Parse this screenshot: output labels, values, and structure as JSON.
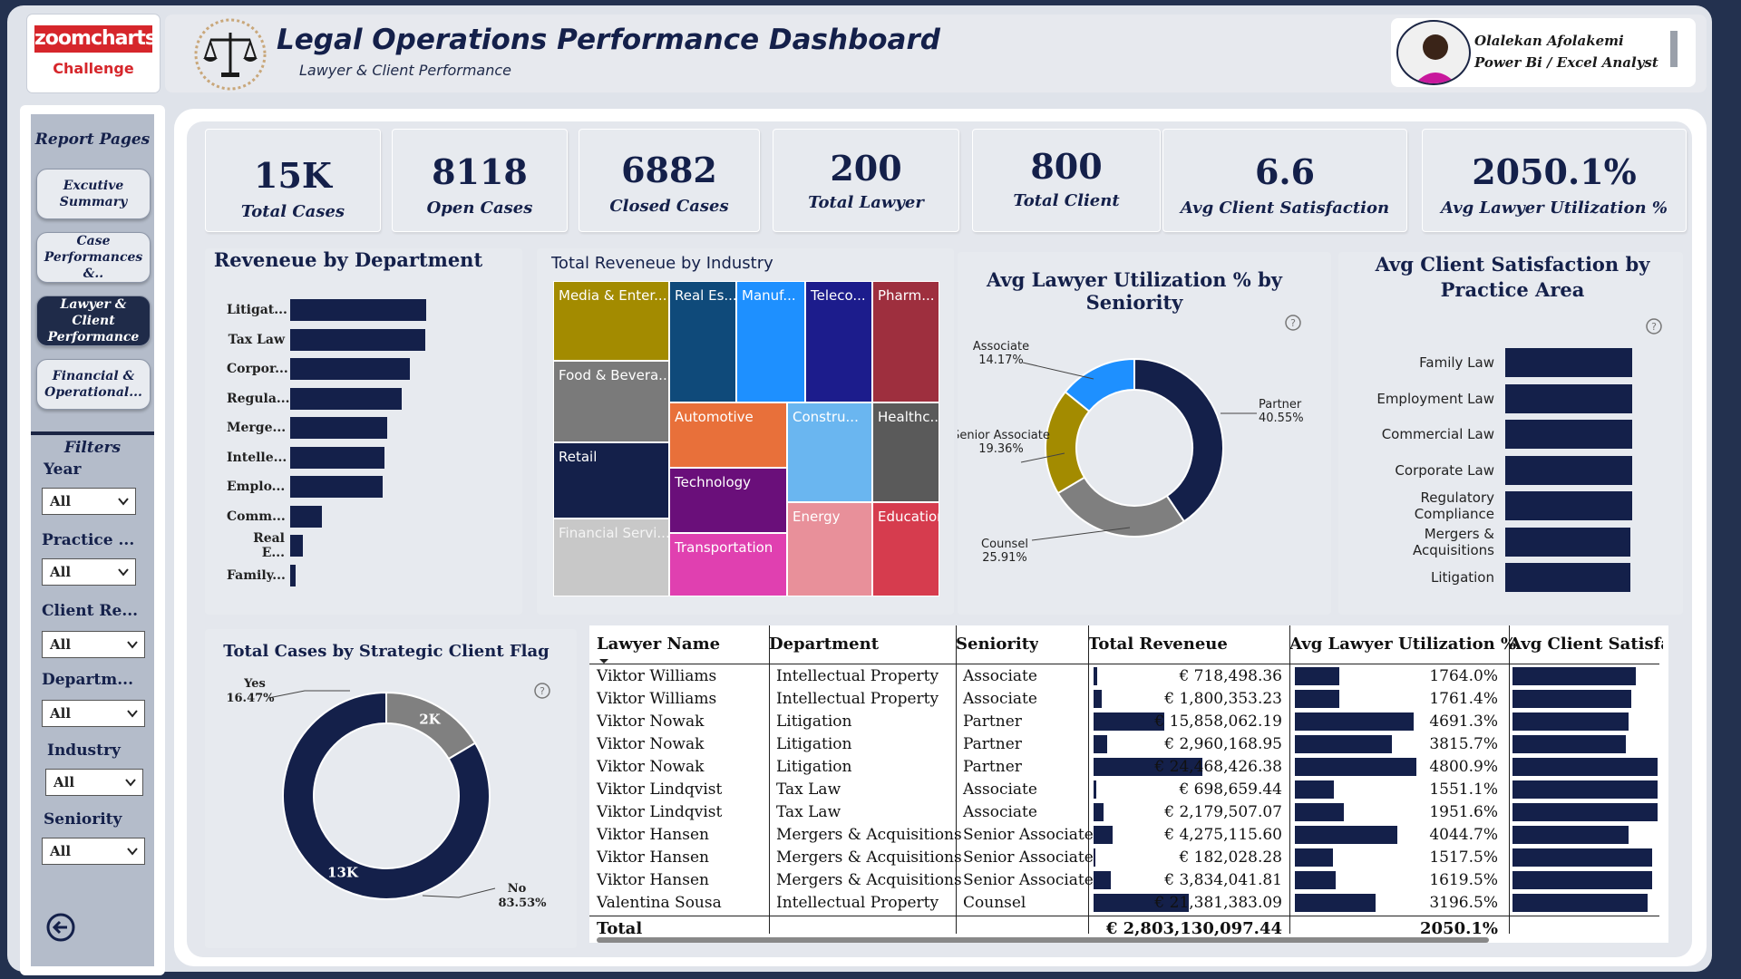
{
  "logo": {
    "brand": "zoomcharts",
    "sub": "Challenge"
  },
  "header": {
    "title": "Legal Operations Performance Dashboard",
    "subtitle": "Lawyer & Client Performance"
  },
  "author": {
    "name": "Olalekan Afolakemi",
    "role": "Power Bi / Excel Analyst"
  },
  "sidebar": {
    "title": "Report Pages",
    "pages": [
      {
        "label": "Excutive Summary",
        "active": false
      },
      {
        "label": "Case Performances &..",
        "active": false
      },
      {
        "label": "Lawyer & Client Performance",
        "active": true
      },
      {
        "label": "Financial & Operational...",
        "active": false
      }
    ],
    "filters_title": "Filters",
    "filters": [
      {
        "label": "Year",
        "value": "All"
      },
      {
        "label": "Practice ...",
        "value": "All"
      },
      {
        "label": "Client Re...",
        "value": "All"
      },
      {
        "label": "Departm...",
        "value": "All"
      },
      {
        "label": "Industry",
        "value": "All"
      },
      {
        "label": "Seniority",
        "value": "All"
      }
    ]
  },
  "kpis": [
    {
      "value": "15K",
      "label": "Total Cases"
    },
    {
      "value": "8118",
      "label": "Open Cases"
    },
    {
      "value": "6882",
      "label": "Closed Cases"
    },
    {
      "value": "200",
      "label": "Total Lawyer"
    },
    {
      "value": "800",
      "label": "Total Client"
    },
    {
      "value": "6.6",
      "label": "Avg Client Satisfaction"
    },
    {
      "value": "2050.1%",
      "label": "Avg Lawyer Utilization %"
    }
  ],
  "dept_chart": {
    "title": "Reveneue by Department",
    "categories": [
      "Litigat...",
      "Tax Law",
      "Corpor...",
      "Regula...",
      "Merge...",
      "Intelle...",
      "Emplo...",
      "Comm...",
      "Real E...",
      "Family..."
    ],
    "values": [
      100,
      99,
      88,
      82,
      71,
      69,
      68,
      23,
      9,
      4
    ]
  },
  "industry_chart": {
    "title": "Total Reveneue by Industry",
    "tiles": [
      {
        "label": "Media & Enter...",
        "color": "#a38b00"
      },
      {
        "label": "Real Es...",
        "color": "#0f4a7a"
      },
      {
        "label": "Manuf...",
        "color": "#1e90ff"
      },
      {
        "label": "Teleco...",
        "color": "#1c1c8c"
      },
      {
        "label": "Pharm...",
        "color": "#9e2f3e"
      },
      {
        "label": "Food & Bevera...",
        "color": "#7a7a7a"
      },
      {
        "label": "Automotive",
        "color": "#e8703a"
      },
      {
        "label": "Constru...",
        "color": "#6ab6f0"
      },
      {
        "label": "Healthc...",
        "color": "#5a5a5a"
      },
      {
        "label": "Retail",
        "color": "#14204a"
      },
      {
        "label": "Technology",
        "color": "#6a0f7a"
      },
      {
        "label": "Energy",
        "color": "#e8909a"
      },
      {
        "label": "Education",
        "color": "#d63c4e"
      },
      {
        "label": "Financial Servi...",
        "color": "#c8c8c8"
      },
      {
        "label": "Transportation",
        "color": "#e040b0"
      }
    ]
  },
  "seniority_chart": {
    "title": "Avg Lawyer Utilization % by Seniority",
    "slices": [
      {
        "name": "Partner",
        "pct": "40.55%",
        "value": 40.55,
        "color": "#14204a"
      },
      {
        "name": "Counsel",
        "pct": "25.91%",
        "value": 25.91,
        "color": "#7f7f7f"
      },
      {
        "name": "Senior Associate",
        "pct": "19.36%",
        "value": 19.36,
        "color": "#a38b00"
      },
      {
        "name": "Associate",
        "pct": "14.17%",
        "value": 14.17,
        "color": "#1e90ff"
      }
    ]
  },
  "practice_chart": {
    "title": "Avg Client Satisfaction by Practice Area",
    "categories": [
      "Family Law",
      "Employment Law",
      "Commercial Law",
      "Corporate Law",
      "Regulatory Compliance",
      "Mergers & Acquisitions",
      "Litigation"
    ],
    "values": [
      6.7,
      6.7,
      6.7,
      6.7,
      6.7,
      6.6,
      6.6
    ]
  },
  "strategic_chart": {
    "title": "Total Cases by Strategic Client Flag",
    "slices": [
      {
        "name": "No",
        "pct": "83.53%",
        "value": 83.53,
        "label": "13K",
        "color": "#14204a"
      },
      {
        "name": "Yes",
        "pct": "16.47%",
        "value": 16.47,
        "label": "2K",
        "color": "#808080"
      }
    ]
  },
  "table": {
    "headers": [
      "Lawyer Name",
      "Department",
      "Seniority",
      "Total Reveneue",
      "Avg Lawyer Utilization %",
      "Avg Client Satisfact"
    ],
    "rows": [
      {
        "name": "Viktor Williams",
        "dept": "Intellectual Property",
        "sen": "Associate",
        "rev": "€ 718,498.36",
        "rev_v": 718498.36,
        "util": "1764.0%",
        "util_v": 1764.0,
        "sat_v": 0.85
      },
      {
        "name": "Viktor Williams",
        "dept": "Intellectual Property",
        "sen": "Associate",
        "rev": "€ 1,800,353.23",
        "rev_v": 1800353.23,
        "util": "1761.4%",
        "util_v": 1761.4,
        "sat_v": 0.82
      },
      {
        "name": "Viktor Nowak",
        "dept": "Litigation",
        "sen": "Partner",
        "rev": "€ 15,858,062.19",
        "rev_v": 15858062.19,
        "util": "4691.3%",
        "util_v": 4691.3,
        "sat_v": 0.8
      },
      {
        "name": "Viktor Nowak",
        "dept": "Litigation",
        "sen": "Partner",
        "rev": "€ 2,960,168.95",
        "rev_v": 2960168.95,
        "util": "3815.7%",
        "util_v": 3815.7,
        "sat_v": 0.78
      },
      {
        "name": "Viktor Nowak",
        "dept": "Litigation",
        "sen": "Partner",
        "rev": "€ 24,468,426.38",
        "rev_v": 24468426.38,
        "util": "4800.9%",
        "util_v": 4800.9,
        "sat_v": 1.0
      },
      {
        "name": "Viktor Lindqvist",
        "dept": "Tax Law",
        "sen": "Associate",
        "rev": "€ 698,659.44",
        "rev_v": 698659.44,
        "util": "1551.1%",
        "util_v": 1551.1,
        "sat_v": 1.0
      },
      {
        "name": "Viktor Lindqvist",
        "dept": "Tax Law",
        "sen": "Associate",
        "rev": "€ 2,179,507.07",
        "rev_v": 2179507.07,
        "util": "1951.6%",
        "util_v": 1951.6,
        "sat_v": 1.0
      },
      {
        "name": "Viktor Hansen",
        "dept": "Mergers & Acquisitions",
        "sen": "Senior Associate",
        "rev": "€ 4,275,115.60",
        "rev_v": 4275115.6,
        "util": "4044.7%",
        "util_v": 4044.7,
        "sat_v": 0.8
      },
      {
        "name": "Viktor Hansen",
        "dept": "Mergers & Acquisitions",
        "sen": "Senior Associate",
        "rev": "€ 182,028.28",
        "rev_v": 182028.28,
        "util": "1517.5%",
        "util_v": 1517.5,
        "sat_v": 0.96
      },
      {
        "name": "Viktor Hansen",
        "dept": "Mergers & Acquisitions",
        "sen": "Senior Associate",
        "rev": "€ 3,834,041.81",
        "rev_v": 3834041.81,
        "util": "1619.5%",
        "util_v": 1619.5,
        "sat_v": 0.96
      },
      {
        "name": "Valentina Sousa",
        "dept": "Intellectual Property",
        "sen": "Counsel",
        "rev": "€ 21,381,383.09",
        "rev_v": 21381383.09,
        "util": "3196.5%",
        "util_v": 3196.5,
        "sat_v": 0.93
      }
    ],
    "total_label": "Total",
    "total_rev": "€ 2,803,130,097.44",
    "total_util": "2050.1%"
  }
}
